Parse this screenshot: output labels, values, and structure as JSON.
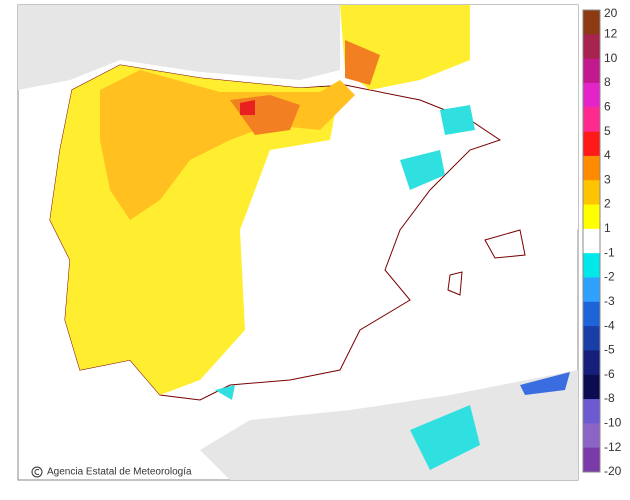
{
  "legend": {
    "labels": [
      "20",
      "12",
      "10",
      "8",
      "6",
      "5",
      "4",
      "3",
      "2",
      "1",
      "-1",
      "-2",
      "-3",
      "-4",
      "-5",
      "-6",
      "-8",
      "-10",
      "-12",
      "-20"
    ],
    "colors": [
      "#8b3a12",
      "#a8244e",
      "#c21a8e",
      "#e424c8",
      "#ff2a90",
      "#ff1a1a",
      "#ff8c00",
      "#ffc400",
      "#ffff00",
      "#ffffff",
      "#00e8e8",
      "#30a0ff",
      "#1e64d8",
      "#1a3ea8",
      "#16207a",
      "#0c0c52",
      "#6e5ad0",
      "#8c64c8",
      "#7a3aa8"
    ]
  },
  "credit": "Agencia Estatal de Meteorología"
}
